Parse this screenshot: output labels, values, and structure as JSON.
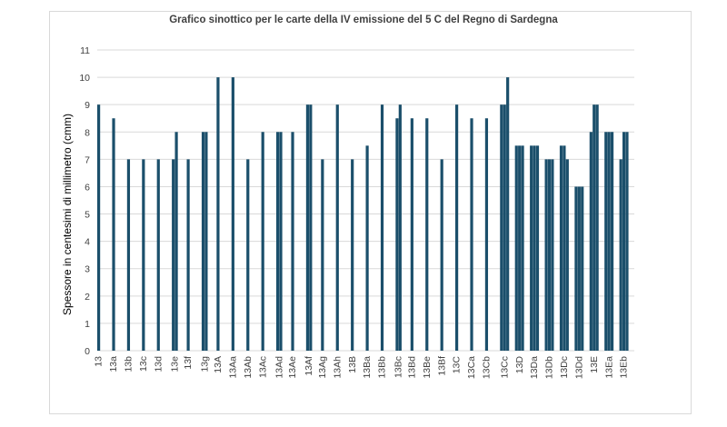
{
  "chart_data": {
    "type": "bar",
    "title": "Grafico sinottico per le carte della IV emissione del 5 C del Regno di Sardegna",
    "xlabel": "",
    "ylabel": "Spessore in centesimi di millimetro (cmm)",
    "ylim": [
      0,
      11
    ],
    "yticks": [
      0,
      1,
      2,
      3,
      4,
      5,
      6,
      7,
      8,
      9,
      10,
      11
    ],
    "grid": true,
    "legend": "none",
    "bar_color": "#1b4f6b",
    "categories": [
      "13",
      "13a",
      "13b",
      "13c",
      "13d",
      "13e",
      "13f",
      "13g",
      "13A",
      "13Aa",
      "13Ab",
      "13Ac",
      "13Ad",
      "13Ae",
      "13Af",
      "13Ag",
      "13Ah",
      "13B",
      "13Ba",
      "13Bb",
      "13Bc",
      "13Bd",
      "13Be",
      "13Bf",
      "13C",
      "13Ca",
      "13Cb",
      "13Cc",
      "13D",
      "13Da",
      "13Db",
      "13Dc",
      "13Dd",
      "13E",
      "13Ea",
      "13Eb"
    ],
    "values": [
      [
        9
      ],
      [
        8.5
      ],
      [
        7
      ],
      [
        7
      ],
      [
        7
      ],
      [
        7,
        8
      ],
      [
        7
      ],
      [
        8,
        8
      ],
      [
        10
      ],
      [
        10
      ],
      [
        7
      ],
      [
        8
      ],
      [
        8,
        8
      ],
      [
        8
      ],
      [
        9,
        9
      ],
      [
        7
      ],
      [
        9
      ],
      [
        7
      ],
      [
        7.5
      ],
      [
        9
      ],
      [
        8.5,
        9
      ],
      [
        8.5
      ],
      [
        8.5
      ],
      [
        7
      ],
      [
        9
      ],
      [
        8.5
      ],
      [
        8.5
      ],
      [
        9,
        9,
        10
      ],
      [
        7.5,
        7.5,
        7.5
      ],
      [
        7.5,
        7.5,
        7.5
      ],
      [
        7,
        7,
        7
      ],
      [
        7.5,
        7.5,
        7
      ],
      [
        6,
        6,
        6
      ],
      [
        8,
        9,
        9
      ],
      [
        8,
        8,
        8
      ],
      [
        7,
        8,
        8
      ]
    ]
  }
}
